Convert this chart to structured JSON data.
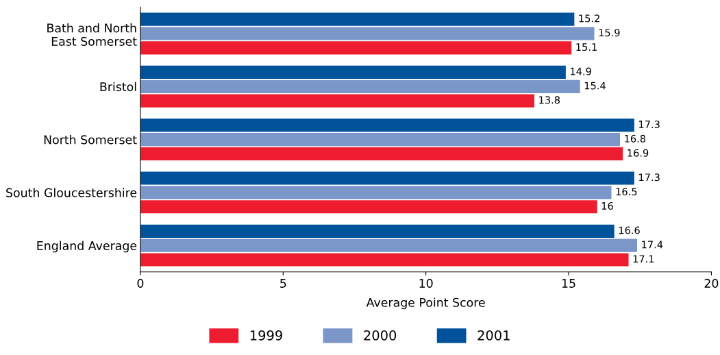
{
  "chart_data": {
    "type": "bar",
    "orientation": "horizontal",
    "xlabel": "Average Point Score",
    "categories": [
      "Bath and North\nEast Somerset",
      "Bristol",
      "North Somerset",
      "South Gloucestershire",
      "England Average"
    ],
    "series": [
      {
        "name": "1999",
        "color": "#ed1c2e",
        "values": [
          15.1,
          13.8,
          16.9,
          16,
          17.1
        ]
      },
      {
        "name": "2000",
        "color": "#7b96c8",
        "values": [
          15.9,
          15.4,
          16.8,
          16.5,
          17.4
        ]
      },
      {
        "name": "2001",
        "color": "#00529b",
        "values": [
          15.2,
          14.9,
          17.3,
          17.3,
          16.6
        ]
      }
    ],
    "xlim": [
      0,
      20
    ],
    "xticks": [
      0,
      5,
      10,
      15,
      20
    ],
    "data_labels": true,
    "legend": "bottom",
    "grid": false
  }
}
